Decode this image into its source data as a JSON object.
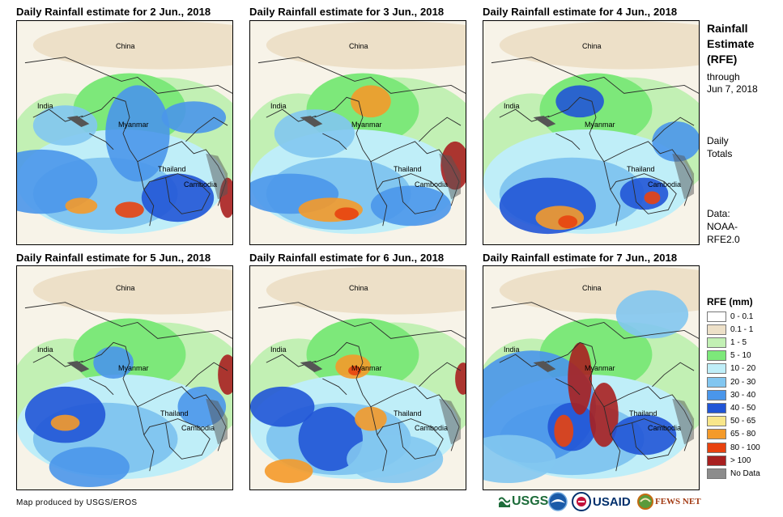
{
  "panels": [
    {
      "title": "Daily Rainfall estimate for 2 Jun., 2018"
    },
    {
      "title": "Daily Rainfall estimate for 3 Jun., 2018"
    },
    {
      "title": "Daily Rainfall estimate for 4 Jun., 2018"
    },
    {
      "title": "Daily Rainfall estimate for 5 Jun., 2018"
    },
    {
      "title": "Daily Rainfall estimate for 6 Jun., 2018"
    },
    {
      "title": "Daily Rainfall estimate for 7 Jun., 2018"
    }
  ],
  "places": {
    "china": "China",
    "india": "India",
    "myanmar": "Myanmar",
    "thailand": "Thailand",
    "cambodia": "Cambodia"
  },
  "side": {
    "title_line1": "Rainfall",
    "title_line2": "Estimate",
    "title_line3": "(RFE)",
    "through": "through",
    "date": "Jun 7, 2018",
    "daily": "Daily",
    "totals": "Totals",
    "data_label": "Data:",
    "data_src1": "NOAA-",
    "data_src2": "RFE2.0"
  },
  "legend": {
    "title": "RFE (mm)",
    "items": [
      {
        "label": "0 - 0.1",
        "color": "#ffffff"
      },
      {
        "label": "0.1 - 1",
        "color": "#ede0c8"
      },
      {
        "label": "1 - 5",
        "color": "#c2f0b4"
      },
      {
        "label": "5 - 10",
        "color": "#7de87a"
      },
      {
        "label": "10 - 20",
        "color": "#bfeef8"
      },
      {
        "label": "20 - 30",
        "color": "#82c6f0"
      },
      {
        "label": "30 - 40",
        "color": "#4a96ea"
      },
      {
        "label": "40 - 50",
        "color": "#2155d6"
      },
      {
        "label": "50 - 65",
        "color": "#f8e68a"
      },
      {
        "label": "65 - 80",
        "color": "#f49a2a"
      },
      {
        "label": "80 - 100",
        "color": "#e8420f"
      },
      {
        "label": "> 100",
        "color": "#a82020"
      },
      {
        "label": "No Data",
        "color": "#8c8c8c"
      }
    ]
  },
  "footer": "Map produced by USGS/EROS",
  "logos": {
    "usgs": "USGS",
    "usaid": "USAID",
    "fewsnet": "FEWS NET"
  }
}
